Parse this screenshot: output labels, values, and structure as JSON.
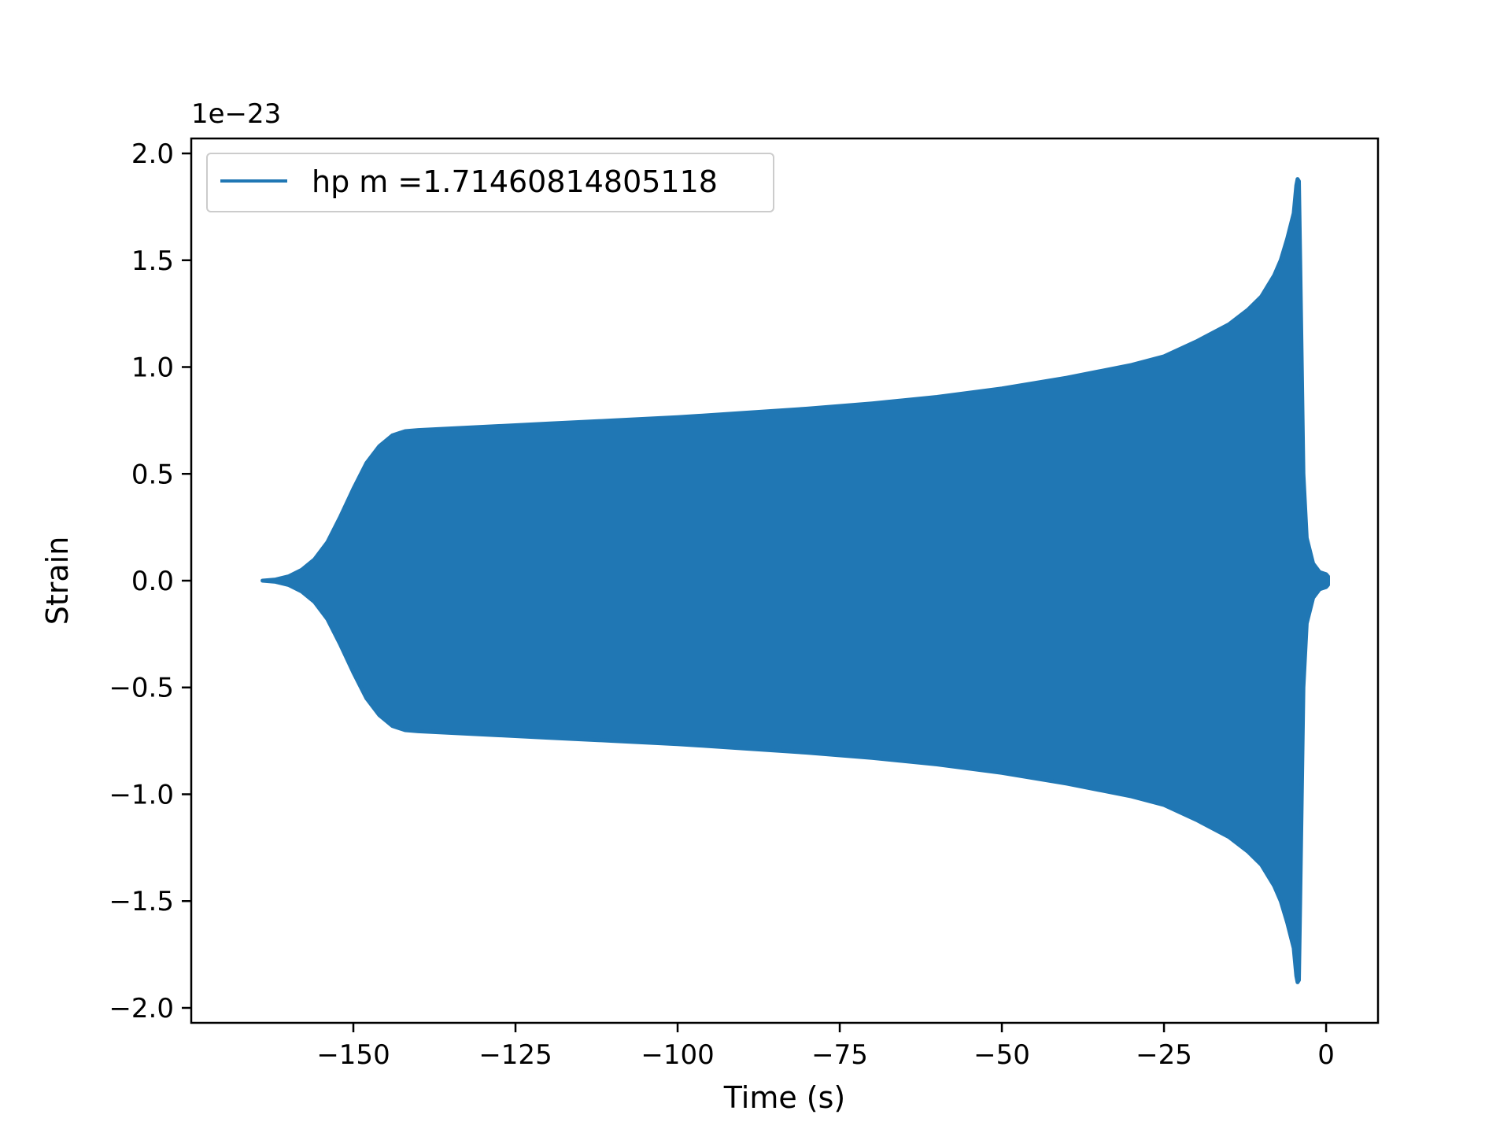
{
  "chart_data": {
    "type": "area",
    "xlabel": "Time (s)",
    "ylabel": "Strain",
    "offset_text": "1e−23",
    "y_scale_factor": "1e-23",
    "xlim": [
      -175,
      8
    ],
    "ylim": [
      -2.07,
      2.07
    ],
    "xticks": [
      -150,
      -125,
      -100,
      -75,
      -50,
      -25,
      0
    ],
    "xtick_labels": [
      "−150",
      "−125",
      "−100",
      "−75",
      "−50",
      "−25",
      "0"
    ],
    "yticks": [
      2.0,
      1.5,
      1.0,
      0.5,
      0.0,
      -0.5,
      -1.0,
      -1.5,
      -2.0
    ],
    "ytick_labels": [
      "2.0",
      "1.5",
      "1.0",
      "0.5",
      "0.0",
      "−0.5",
      "−1.0",
      "−1.5",
      "−2.0"
    ],
    "grid": false,
    "legend_position": "top-left",
    "series": [
      {
        "name": "hp m =1.71460814805118",
        "color": "#2077b4",
        "envelope_time": [
          -164,
          -162,
          -160,
          -158,
          -156,
          -154,
          -152,
          -150,
          -148,
          -146,
          -144,
          -142,
          -140,
          -130,
          -120,
          -110,
          -100,
          -90,
          -80,
          -70,
          -60,
          -50,
          -40,
          -30,
          -25,
          -20,
          -15,
          -12,
          -10,
          -8,
          -7,
          -6,
          -5,
          -4.6,
          -4.4,
          -4.2,
          -4.0,
          -3.5,
          -3.0,
          -2.0,
          -1.0,
          0,
          0.3
        ],
        "envelope_amplitude": [
          0.0,
          0.005,
          0.02,
          0.05,
          0.1,
          0.18,
          0.3,
          0.43,
          0.55,
          0.63,
          0.68,
          0.7,
          0.705,
          0.72,
          0.735,
          0.75,
          0.765,
          0.785,
          0.805,
          0.83,
          0.86,
          0.9,
          0.95,
          1.01,
          1.05,
          1.12,
          1.2,
          1.27,
          1.33,
          1.43,
          1.5,
          1.6,
          1.72,
          1.85,
          1.88,
          1.87,
          1.5,
          0.5,
          0.2,
          0.08,
          0.04,
          0.03,
          0.02
        ]
      }
    ]
  }
}
